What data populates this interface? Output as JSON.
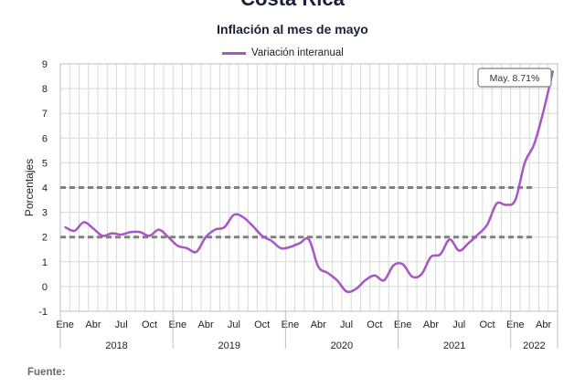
{
  "header": {
    "country": "Costa Rica",
    "chart_title": "Inflación al mes de mayo",
    "source_label": "Fuente:"
  },
  "colors": {
    "series_line": "#a855c7",
    "reference_lines": "#808080",
    "grid": "#d9d9d9",
    "axis_text": "#222222"
  },
  "chart_data": {
    "type": "line",
    "title": "Inflación al mes de mayo",
    "ylabel": "Porcentajes",
    "xlabel": "",
    "ylim": [
      -1,
      9
    ],
    "yticks": [
      -1,
      0,
      1,
      2,
      3,
      4,
      5,
      6,
      7,
      8,
      9
    ],
    "grid": true,
    "legend_position": "top-center",
    "x_month_labels": [
      "Ene",
      "Abr",
      "Jul",
      "Oct",
      "Ene",
      "Abr",
      "Jul",
      "Oct",
      "Ene",
      "Abr",
      "Jul",
      "Oct",
      "Ene",
      "Abr",
      "Jul",
      "Oct",
      "Ene",
      "Abr"
    ],
    "x_year_labels": [
      "2018",
      "2019",
      "2020",
      "2021",
      "2022"
    ],
    "series": [
      {
        "name": "Variación interanual",
        "x": [
          "2018-01",
          "2018-02",
          "2018-03",
          "2018-04",
          "2018-05",
          "2018-06",
          "2018-07",
          "2018-08",
          "2018-09",
          "2018-10",
          "2018-11",
          "2018-12",
          "2019-01",
          "2019-02",
          "2019-03",
          "2019-04",
          "2019-05",
          "2019-06",
          "2019-07",
          "2019-08",
          "2019-09",
          "2019-10",
          "2019-11",
          "2019-12",
          "2020-01",
          "2020-02",
          "2020-03",
          "2020-04",
          "2020-05",
          "2020-06",
          "2020-07",
          "2020-08",
          "2020-09",
          "2020-10",
          "2020-11",
          "2020-12",
          "2021-01",
          "2021-02",
          "2021-03",
          "2021-04",
          "2021-05",
          "2021-06",
          "2021-07",
          "2021-08",
          "2021-09",
          "2021-10",
          "2021-11",
          "2021-12",
          "2022-01",
          "2022-02",
          "2022-03",
          "2022-04",
          "2022-05"
        ],
        "values": [
          2.4,
          2.25,
          2.6,
          2.35,
          2.05,
          2.15,
          2.1,
          2.2,
          2.2,
          2.05,
          2.3,
          2.0,
          1.65,
          1.55,
          1.4,
          2.0,
          2.3,
          2.4,
          2.9,
          2.8,
          2.45,
          2.05,
          1.85,
          1.55,
          1.6,
          1.75,
          1.9,
          0.8,
          0.55,
          0.25,
          -0.2,
          -0.1,
          0.25,
          0.45,
          0.25,
          0.85,
          0.9,
          0.4,
          0.5,
          1.2,
          1.3,
          1.9,
          1.45,
          1.75,
          2.1,
          2.5,
          3.35,
          3.3,
          3.5,
          5.0,
          5.75,
          7.1,
          8.71
        ]
      }
    ],
    "reference_lines": [
      2,
      4
    ],
    "annotation": "May. 8.71%"
  }
}
